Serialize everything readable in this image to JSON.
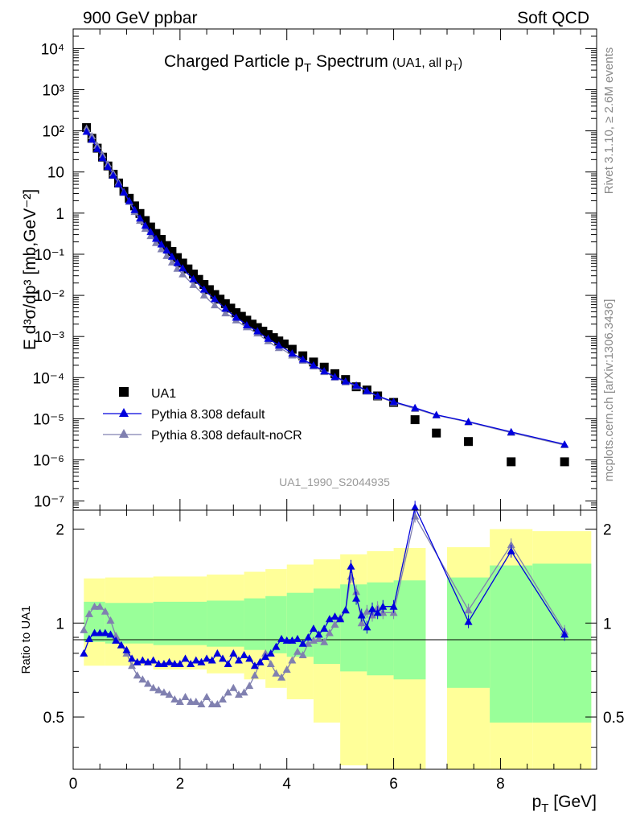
{
  "header": {
    "left": "900 GeV ppbar",
    "right": "Soft QCD",
    "title": "Charged Particle p",
    "title_sub": "T",
    "title_word": " Spectrum",
    "title_note": "(UA1, all p",
    "title_note_sub": "T",
    "title_note_close": ")",
    "side_top": "Rivet 3.1.10, ≥ 2.6M events",
    "side_bottom": "mcplots.cern.ch [arXiv:1306.3436]",
    "analysis_id": "UA1_1990_S2044935"
  },
  "axes": {
    "ylabel_main": "E d³σ/dp³ [mb,GeV⁻²]",
    "ylabel_ratio": "Ratio to UA1",
    "xlabel": "p",
    "xlabel_sub": "T",
    "xlabel_unit": " [GeV]"
  },
  "legend": {
    "data": "UA1",
    "default": "Pythia 8.308 default",
    "nocr": "Pythia 8.308 default-noCR"
  },
  "colors": {
    "data": "#000000",
    "default": "#0000dd",
    "nocr": "#8080b0",
    "band_inner": "#99ff99",
    "band_outer": "#ffff99"
  },
  "chart_data": [
    {
      "type": "scatter",
      "title": "Charged Particle pT Spectrum (UA1, all pT)",
      "xlabel": "pT [GeV]",
      "ylabel": "E d3sigma/dp3 [mb,GeV^-2]",
      "xlim": [
        0,
        9.8
      ],
      "ylim": [
        6e-08,
        30000.0
      ],
      "yscale": "log",
      "x_ticks": [
        "0",
        "2",
        "4",
        "6",
        "8"
      ],
      "y_ticks": [
        "10⁻⁷",
        "10⁻⁶",
        "10⁻⁵",
        "10⁻⁴",
        "10⁻³",
        "10⁻²",
        "10⁻¹",
        "1",
        "10",
        "10²",
        "10³",
        "10⁴"
      ],
      "legend_position": "lower-left",
      "x": [
        0.25,
        0.35,
        0.45,
        0.55,
        0.65,
        0.75,
        0.85,
        0.95,
        1.05,
        1.15,
        1.25,
        1.35,
        1.45,
        1.55,
        1.65,
        1.75,
        1.85,
        1.95,
        2.05,
        2.15,
        2.25,
        2.35,
        2.45,
        2.55,
        2.65,
        2.75,
        2.85,
        2.95,
        3.05,
        3.15,
        3.25,
        3.35,
        3.45,
        3.55,
        3.65,
        3.75,
        3.85,
        3.95,
        4.1,
        4.3,
        4.5,
        4.7,
        4.9,
        5.1,
        5.3,
        5.5,
        5.7,
        6.0,
        6.4,
        6.8,
        7.4,
        8.2,
        9.2
      ],
      "series": [
        {
          "name": "UA1",
          "marker": "square",
          "values": [
            120,
            66,
            38,
            23,
            14,
            8.8,
            5.4,
            3.4,
            2.3,
            1.5,
            0.98,
            0.66,
            0.46,
            0.32,
            0.23,
            0.163,
            0.117,
            0.083,
            0.061,
            0.044,
            0.033,
            0.0245,
            0.0184,
            0.0138,
            0.0105,
            0.0081,
            0.0063,
            0.0049,
            0.0038,
            0.0031,
            0.0025,
            0.002,
            0.00165,
            0.00135,
            0.00112,
            0.00094,
            0.00078,
            0.00066,
            0.00049,
            0.00034,
            0.00024,
            0.00018,
            0.000125,
            9e-05,
            6e-05,
            5e-05,
            3.6e-05,
            2.5e-05,
            9.5e-06,
            4.5e-06,
            2.8e-06,
            9e-07,
            9e-07
          ]
        },
        {
          "name": "Pythia 8.308 default",
          "marker": "triangle",
          "values": [
            96,
            62,
            37,
            22,
            13.5,
            8.3,
            5.1,
            3.2,
            2.0,
            1.2,
            0.75,
            0.5,
            0.35,
            0.24,
            0.175,
            0.125,
            0.088,
            0.062,
            0.046,
            0.033,
            0.025,
            0.0185,
            0.014,
            0.0104,
            0.0082,
            0.0062,
            0.0048,
            0.0037,
            0.0029,
            0.0024,
            0.0019,
            0.0016,
            0.00135,
            0.00108,
            0.00089,
            0.00074,
            0.00061,
            0.00052,
            0.00039,
            0.00028,
            0.0002,
            0.000145,
            0.000105,
            8.2e-05,
            6.5e-05,
            4.8e-05,
            3.6e-05,
            2.6e-05,
            1.85e-05,
            1.25e-05,
            8.5e-06,
            4.8e-06,
            2.4e-06
          ]
        },
        {
          "name": "Pythia 8.308 default-noCR",
          "marker": "triangle",
          "values": [
            115,
            75,
            44,
            26,
            15.5,
            9.4,
            5.6,
            3.3,
            1.9,
            1.08,
            0.66,
            0.42,
            0.28,
            0.19,
            0.134,
            0.092,
            0.064,
            0.045,
            0.033,
            0.024,
            0.0181,
            0.0136,
            0.0101,
            0.0075,
            0.0058,
            0.0046,
            0.0037,
            0.0031,
            0.0025,
            0.002,
            0.0017,
            0.0014,
            0.0012,
            0.00094,
            0.00078,
            0.00062,
            0.00053,
            0.00046,
            0.00035,
            0.00026,
            0.00019,
            0.000138,
            0.000102,
            7.8e-05,
            6.2e-05,
            4.7e-05,
            3.5e-05,
            2.5e-05,
            1.75e-05,
            1.22e-05,
            8.3e-06,
            4.6e-06,
            2.3e-06
          ]
        }
      ]
    },
    {
      "type": "line",
      "ylabel": "Ratio to UA1",
      "xlabel": "pT [GeV]",
      "xlim": [
        0,
        9.8
      ],
      "ylim": [
        0.34,
        2.3
      ],
      "yscale": "log",
      "y_ticks": [
        "0.5",
        "1",
        "2"
      ],
      "reference_line": 1.0,
      "x": [
        0.2,
        0.3,
        0.4,
        0.5,
        0.6,
        0.7,
        0.8,
        0.9,
        1.0,
        1.1,
        1.2,
        1.3,
        1.4,
        1.5,
        1.6,
        1.7,
        1.8,
        1.9,
        2.0,
        2.1,
        2.2,
        2.3,
        2.4,
        2.5,
        2.6,
        2.7,
        2.8,
        2.9,
        3.0,
        3.1,
        3.2,
        3.3,
        3.4,
        3.5,
        3.6,
        3.7,
        3.8,
        3.9,
        4.0,
        4.1,
        4.2,
        4.3,
        4.4,
        4.5,
        4.6,
        4.7,
        4.8,
        4.9,
        5.0,
        5.1,
        5.2,
        5.3,
        5.4,
        5.5,
        5.6,
        5.7,
        5.8,
        6.0,
        6.4,
        7.4,
        8.2,
        9.2
      ],
      "series": [
        {
          "name": "Pythia 8.308 default",
          "values": [
            0.8,
            0.89,
            0.93,
            0.93,
            0.93,
            0.92,
            0.88,
            0.85,
            0.82,
            0.77,
            0.75,
            0.76,
            0.75,
            0.76,
            0.74,
            0.74,
            0.75,
            0.74,
            0.74,
            0.77,
            0.74,
            0.76,
            0.75,
            0.77,
            0.76,
            0.8,
            0.77,
            0.74,
            0.8,
            0.76,
            0.79,
            0.77,
            0.73,
            0.75,
            0.78,
            0.8,
            0.84,
            0.89,
            0.88,
            0.88,
            0.89,
            0.86,
            0.9,
            0.96,
            0.92,
            0.96,
            1.03,
            1.05,
            1.03,
            1.1,
            1.52,
            1.2,
            1.06,
            0.97,
            1.11,
            1.08,
            1.13,
            1.13,
            2.35,
            1.01,
            1.7,
            0.92
          ]
        },
        {
          "name": "Pythia 8.308 default-noCR",
          "values": [
            0.95,
            1.07,
            1.13,
            1.13,
            1.09,
            1.02,
            0.91,
            0.85,
            0.8,
            0.73,
            0.68,
            0.66,
            0.64,
            0.62,
            0.61,
            0.6,
            0.59,
            0.57,
            0.56,
            0.58,
            0.56,
            0.56,
            0.55,
            0.58,
            0.55,
            0.55,
            0.57,
            0.6,
            0.62,
            0.59,
            0.6,
            0.63,
            0.68,
            0.75,
            0.8,
            0.74,
            0.69,
            0.67,
            0.71,
            0.76,
            0.81,
            0.79,
            0.86,
            0.88,
            0.89,
            0.87,
            0.93,
            0.99,
            1.04,
            1.1,
            1.41,
            1.26,
            1.0,
            1.09,
            1.06,
            1.12,
            1.08,
            1.08,
            2.2,
            1.1,
            1.78,
            0.94
          ]
        }
      ],
      "bands": [
        {
          "x_from": 0.2,
          "x_to": 0.6,
          "inner": [
            0.87,
            1.17
          ],
          "outer": [
            0.73,
            1.39
          ]
        },
        {
          "x_from": 0.6,
          "x_to": 1.5,
          "inner": [
            0.86,
            1.16
          ],
          "outer": [
            0.73,
            1.4
          ]
        },
        {
          "x_from": 1.5,
          "x_to": 2.5,
          "inner": [
            0.85,
            1.17
          ],
          "outer": [
            0.71,
            1.41
          ]
        },
        {
          "x_from": 2.5,
          "x_to": 3.2,
          "inner": [
            0.84,
            1.18
          ],
          "outer": [
            0.69,
            1.43
          ]
        },
        {
          "x_from": 3.2,
          "x_to": 3.6,
          "inner": [
            0.82,
            1.2
          ],
          "outer": [
            0.66,
            1.46
          ]
        },
        {
          "x_from": 3.6,
          "x_to": 4.0,
          "inner": [
            0.8,
            1.22
          ],
          "outer": [
            0.62,
            1.49
          ]
        },
        {
          "x_from": 4.0,
          "x_to": 4.5,
          "inner": [
            0.78,
            1.25
          ],
          "outer": [
            0.57,
            1.54
          ]
        },
        {
          "x_from": 4.5,
          "x_to": 5.0,
          "inner": [
            0.74,
            1.29
          ],
          "outer": [
            0.48,
            1.6
          ]
        },
        {
          "x_from": 5.0,
          "x_to": 5.5,
          "inner": [
            0.7,
            1.33
          ],
          "outer": [
            0.35,
            1.66
          ]
        },
        {
          "x_from": 5.5,
          "x_to": 6.0,
          "inner": [
            0.68,
            1.35
          ],
          "outer": [
            0.34,
            1.7
          ]
        },
        {
          "x_from": 6.0,
          "x_to": 6.6,
          "inner": [
            0.66,
            1.37
          ],
          "outer": [
            0.34,
            1.74
          ]
        },
        {
          "x_from": 7.0,
          "x_to": 7.8,
          "inner": [
            0.62,
            1.4
          ],
          "outer": [
            0.34,
            1.75
          ]
        },
        {
          "x_from": 7.8,
          "x_to": 8.6,
          "inner": [
            0.48,
            1.53
          ],
          "outer": [
            0.34,
            2.0
          ]
        },
        {
          "x_from": 8.6,
          "x_to": 9.7,
          "inner": [
            0.48,
            1.55
          ],
          "outer": [
            0.34,
            1.97
          ]
        }
      ]
    }
  ]
}
